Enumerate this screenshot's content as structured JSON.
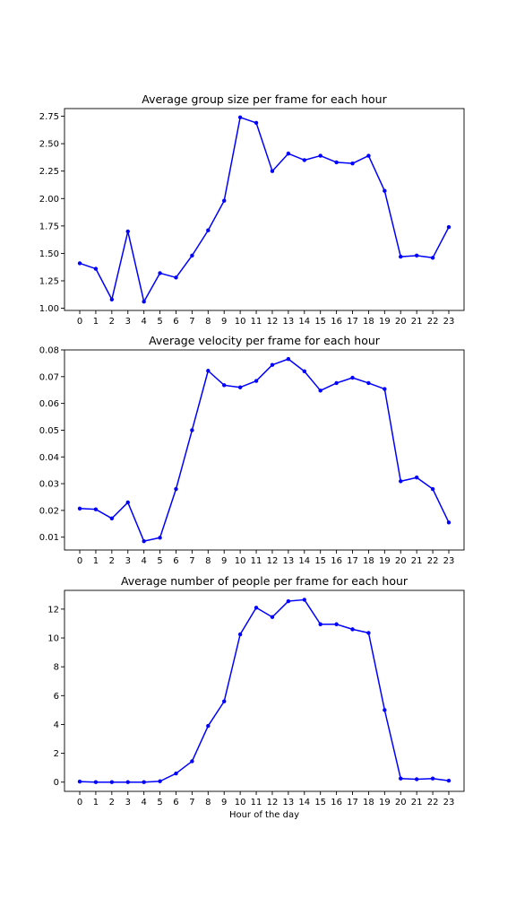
{
  "chart_data": [
    {
      "type": "line",
      "title": "Average group size per frame for each hour",
      "xlabel": "",
      "ylabel": "",
      "x": [
        0,
        1,
        2,
        3,
        4,
        5,
        6,
        7,
        8,
        9,
        10,
        11,
        12,
        13,
        14,
        15,
        16,
        17,
        18,
        19,
        20,
        21,
        22,
        23
      ],
      "x_ticks": [
        "0",
        "1",
        "2",
        "3",
        "4",
        "5",
        "6",
        "7",
        "8",
        "9",
        "10",
        "11",
        "12",
        "13",
        "14",
        "15",
        "16",
        "17",
        "18",
        "19",
        "20",
        "21",
        "22",
        "23"
      ],
      "y_ticks": [
        "1.00",
        "1.25",
        "1.50",
        "1.75",
        "2.00",
        "2.25",
        "2.50",
        "2.75"
      ],
      "y_tick_values": [
        1.0,
        1.25,
        1.5,
        1.75,
        2.0,
        2.25,
        2.5,
        2.75
      ],
      "ylim": [
        0.98,
        2.82
      ],
      "xlim": [
        -0.95,
        23.95
      ],
      "series": [
        {
          "color": "#0000ff",
          "marker": "point",
          "values": [
            1.41,
            1.36,
            1.08,
            1.7,
            1.06,
            1.32,
            1.28,
            1.48,
            1.71,
            1.98,
            2.74,
            2.69,
            2.25,
            2.41,
            2.35,
            2.39,
            2.33,
            2.32,
            2.39,
            2.07,
            1.47,
            1.48,
            1.46,
            1.74
          ]
        }
      ],
      "grid": false
    },
    {
      "type": "line",
      "title": "Average velocity per frame for each hour",
      "xlabel": "",
      "ylabel": "",
      "x": [
        0,
        1,
        2,
        3,
        4,
        5,
        6,
        7,
        8,
        9,
        10,
        11,
        12,
        13,
        14,
        15,
        16,
        17,
        18,
        19,
        20,
        21,
        22,
        23
      ],
      "x_ticks": [
        "0",
        "1",
        "2",
        "3",
        "4",
        "5",
        "6",
        "7",
        "8",
        "9",
        "10",
        "11",
        "12",
        "13",
        "14",
        "15",
        "16",
        "17",
        "18",
        "19",
        "20",
        "21",
        "22",
        "23"
      ],
      "y_ticks": [
        "0.01",
        "0.02",
        "0.03",
        "0.04",
        "0.05",
        "0.06",
        "0.07",
        "0.08"
      ],
      "y_tick_values": [
        0.01,
        0.02,
        0.03,
        0.04,
        0.05,
        0.06,
        0.07,
        0.08
      ],
      "ylim": [
        0.0052,
        0.08
      ],
      "xlim": [
        -0.95,
        23.95
      ],
      "series": [
        {
          "color": "#0000ff",
          "marker": "point",
          "values": [
            0.0207,
            0.0204,
            0.017,
            0.023,
            0.0085,
            0.0098,
            0.028,
            0.05,
            0.0722,
            0.0668,
            0.066,
            0.0684,
            0.0744,
            0.0766,
            0.072,
            0.0648,
            0.0676,
            0.0696,
            0.0676,
            0.0654,
            0.0309,
            0.0323,
            0.028,
            0.0155
          ]
        }
      ],
      "grid": false
    },
    {
      "type": "line",
      "title": "Average number of people per frame for each hour",
      "xlabel": "Hour of the day",
      "ylabel": "",
      "x": [
        0,
        1,
        2,
        3,
        4,
        5,
        6,
        7,
        8,
        9,
        10,
        11,
        12,
        13,
        14,
        15,
        16,
        17,
        18,
        19,
        20,
        21,
        22,
        23
      ],
      "x_ticks": [
        "0",
        "1",
        "2",
        "3",
        "4",
        "5",
        "6",
        "7",
        "8",
        "9",
        "10",
        "11",
        "12",
        "13",
        "14",
        "15",
        "16",
        "17",
        "18",
        "19",
        "20",
        "21",
        "22",
        "23"
      ],
      "y_ticks": [
        "0",
        "2",
        "4",
        "6",
        "8",
        "10",
        "12"
      ],
      "y_tick_values": [
        0,
        2,
        4,
        6,
        8,
        10,
        12
      ],
      "ylim": [
        -0.64,
        13.3
      ],
      "xlim": [
        -0.95,
        23.95
      ],
      "series": [
        {
          "color": "#0000ff",
          "marker": "point",
          "values": [
            0.04,
            0.0,
            0.0,
            0.0,
            0.0,
            0.06,
            0.6,
            1.45,
            3.9,
            5.6,
            10.25,
            12.1,
            11.45,
            12.55,
            12.65,
            10.95,
            10.95,
            10.6,
            10.35,
            5.0,
            0.25,
            0.2,
            0.25,
            0.1
          ]
        }
      ],
      "grid": false
    }
  ]
}
